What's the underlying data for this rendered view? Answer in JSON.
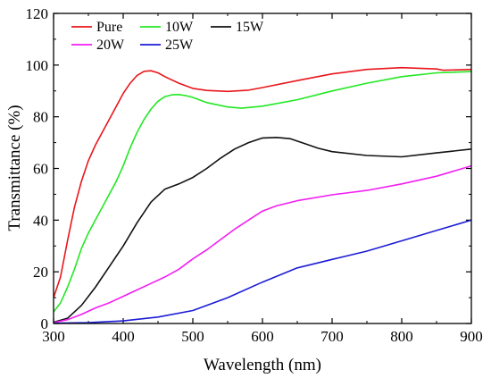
{
  "chart_data": {
    "type": "line",
    "xlabel": "Wavelength (nm)",
    "ylabel": "Transmittance (%)",
    "xlim": [
      300,
      900
    ],
    "ylim": [
      0,
      120
    ],
    "xticks": [
      300,
      400,
      500,
      600,
      700,
      800,
      900
    ],
    "yticks": [
      0,
      20,
      40,
      60,
      80,
      100,
      120
    ],
    "grid": false,
    "legend_position": "top-left",
    "series": [
      {
        "name": "Pure",
        "color": "#e8161b",
        "x": [
          300,
          310,
          320,
          330,
          340,
          350,
          360,
          370,
          380,
          390,
          400,
          410,
          420,
          430,
          440,
          450,
          460,
          480,
          500,
          520,
          550,
          580,
          600,
          650,
          700,
          750,
          800,
          850,
          860,
          900
        ],
        "y": [
          10,
          18,
          32,
          45,
          55,
          63,
          69,
          74,
          79,
          84,
          89,
          93,
          96,
          97.6,
          97.8,
          97,
          95.5,
          93,
          91,
          90.2,
          89.8,
          90.3,
          91.3,
          94,
          96.6,
          98.3,
          99,
          98.5,
          98,
          98.3
        ]
      },
      {
        "name": "10W",
        "color": "#22e822",
        "x": [
          300,
          310,
          320,
          330,
          340,
          350,
          360,
          370,
          380,
          390,
          400,
          410,
          420,
          430,
          440,
          450,
          460,
          470,
          480,
          490,
          500,
          520,
          550,
          570,
          600,
          650,
          700,
          750,
          800,
          850,
          900
        ],
        "y": [
          4.5,
          8,
          14,
          21,
          29,
          35,
          40,
          45,
          50,
          55,
          61,
          68,
          74,
          79,
          83,
          86,
          87.8,
          88.5,
          88.6,
          88.2,
          87.5,
          85.5,
          83.8,
          83.3,
          84.1,
          86.6,
          90,
          93,
          95.5,
          97,
          97.5
        ]
      },
      {
        "name": "15W",
        "color": "#111111",
        "x": [
          300,
          320,
          340,
          360,
          380,
          400,
          420,
          440,
          460,
          480,
          500,
          520,
          540,
          560,
          580,
          600,
          620,
          640,
          660,
          680,
          700,
          750,
          800,
          850,
          900
        ],
        "y": [
          0.5,
          2,
          7,
          14,
          22,
          30,
          39,
          47,
          52,
          54,
          56.5,
          60,
          64,
          67.5,
          70,
          71.8,
          72,
          71.5,
          69.7,
          67.8,
          66.5,
          65,
          64.5,
          66,
          67.5
        ]
      },
      {
        "name": "20W",
        "color": "#f21ef2",
        "x": [
          300,
          320,
          340,
          360,
          380,
          400,
          420,
          440,
          460,
          480,
          500,
          520,
          540,
          560,
          580,
          600,
          620,
          650,
          700,
          750,
          800,
          850,
          900
        ],
        "y": [
          0.3,
          1.5,
          3.5,
          6,
          8,
          10.5,
          13,
          15.5,
          18,
          21,
          25,
          28.5,
          32.5,
          36.5,
          40,
          43.5,
          45.5,
          47.5,
          49.8,
          51.5,
          54,
          57,
          61
        ]
      },
      {
        "name": "25W",
        "color": "#1c1cd6",
        "x": [
          300,
          350,
          400,
          450,
          500,
          550,
          600,
          650,
          700,
          750,
          800,
          850,
          900
        ],
        "y": [
          0.1,
          0.3,
          1,
          2.5,
          5,
          10,
          16,
          21.5,
          24.8,
          28,
          32,
          36,
          40
        ]
      }
    ]
  }
}
